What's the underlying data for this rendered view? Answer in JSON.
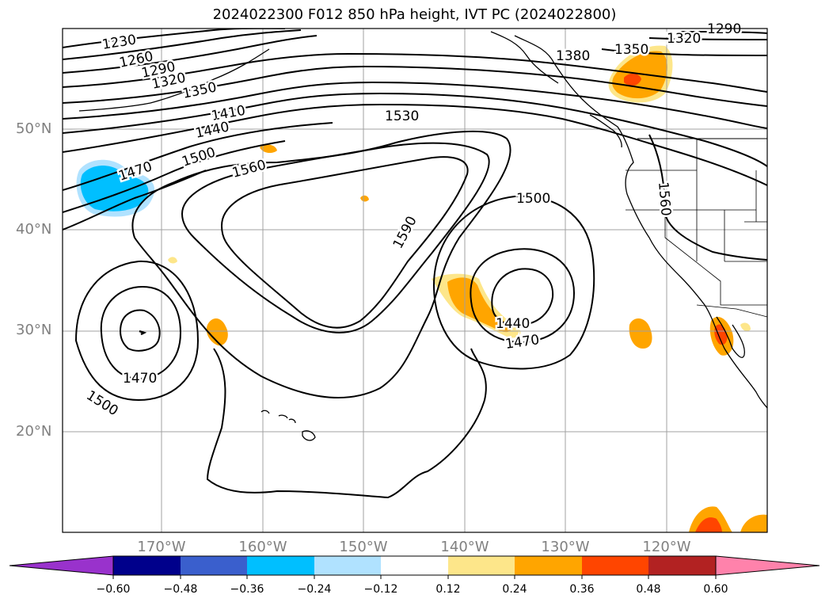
{
  "title": "2024022300 F012 850 hPa height, IVT PC (2024022800)",
  "lat_labels": [
    "50°N",
    "40°N",
    "30°N",
    "20°N"
  ],
  "lon_labels": [
    "170°W",
    "160°W",
    "150°W",
    "140°W",
    "130°W",
    "120°W"
  ],
  "contour_labels": [
    "1230",
    "1260",
    "1290",
    "1320",
    "1350",
    "1410",
    "1440",
    "1500",
    "1470",
    "1560",
    "1530",
    "1590",
    "1500",
    "1440",
    "1470",
    "1470",
    "1500",
    "1380",
    "1350",
    "1320",
    "1290",
    "1560"
  ],
  "colorbar": {
    "ticks": [
      "−0.60",
      "−0.48",
      "−0.36",
      "−0.24",
      "−0.12",
      "0.12",
      "0.24",
      "0.36",
      "0.48",
      "0.60"
    ],
    "colors": [
      "#9932cc",
      "#00008b",
      "#3a5fcd",
      "#00bfff",
      "#b0e2ff",
      "#ffffff",
      "#fde68a",
      "#ffa500",
      "#ff4500",
      "#b22222",
      "#ff82ab"
    ]
  }
}
